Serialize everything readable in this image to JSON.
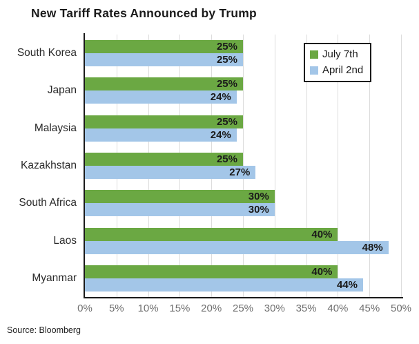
{
  "source_note": "Source: Bloomberg",
  "colors": {
    "july7_green": "#6BA843",
    "april2_blue": "#A3C6E8",
    "axis": "#1A1A1A",
    "gridline": "#DCDCDC",
    "tick_label": "#6F6F6F",
    "data_label": "#1A1A1A"
  },
  "chart_data": {
    "type": "bar",
    "orientation": "horizontal",
    "title": "New Tariff Rates Announced by Trump",
    "categories": [
      "South Korea",
      "Japan",
      "Malaysia",
      "Kazakhstan",
      "South Africa",
      "Laos",
      "Myanmar"
    ],
    "series": [
      {
        "name": "July 7th",
        "color": "#6BA843",
        "values": [
          25,
          25,
          25,
          25,
          30,
          40,
          40
        ]
      },
      {
        "name": "April 2nd",
        "color": "#A3C6E8",
        "values": [
          25,
          24,
          24,
          27,
          30,
          48,
          44
        ]
      }
    ],
    "value_suffix": "%",
    "xlim": [
      0,
      50
    ],
    "x_ticks": [
      "0%",
      "5%",
      "10%",
      "15%",
      "20%",
      "25%",
      "30%",
      "35%",
      "40%",
      "45%",
      "50%"
    ],
    "grid": true,
    "legend_position": "top-right",
    "data_labels": "inside-end"
  }
}
